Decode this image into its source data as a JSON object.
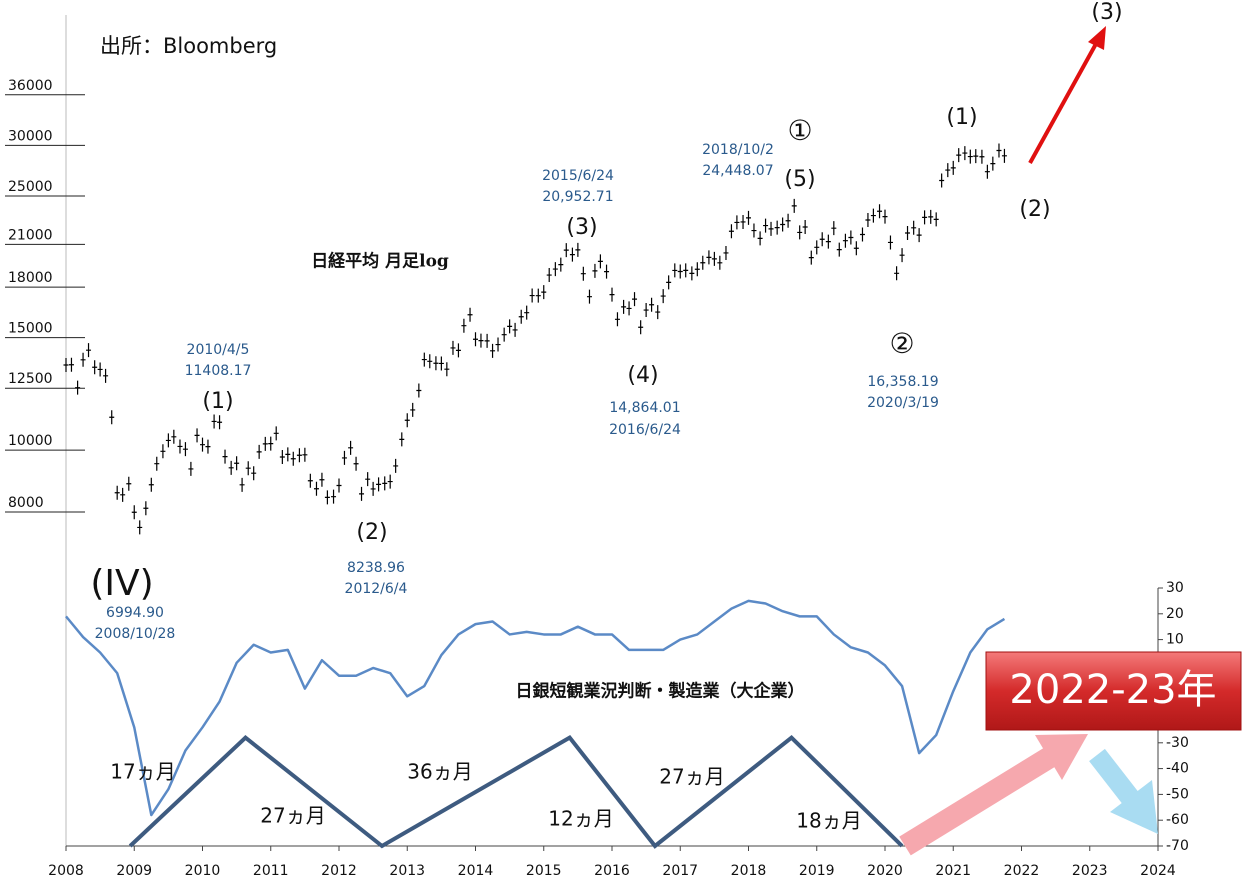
{
  "chart_data": {
    "type": "combo",
    "source": "出所：Bloomberg",
    "xlim": [
      2008,
      2024
    ],
    "xticks": [
      2008,
      2009,
      2010,
      2011,
      2012,
      2013,
      2014,
      2015,
      2016,
      2017,
      2018,
      2019,
      2020,
      2021,
      2022,
      2023,
      2024
    ],
    "ylim": [
      2400,
      48000
    ],
    "log": true,
    "yticks": [
      8000,
      10000,
      12500,
      15000,
      18000,
      21000,
      25000,
      30000,
      36000
    ],
    "y2lim": [
      -70,
      30
    ],
    "y2ticks": [
      30,
      20,
      10,
      -30,
      -40,
      -50,
      -60,
      -70
    ],
    "series": [
      {
        "name": "日経平均 月足log",
        "type": "candle",
        "color": "#000000",
        "x": [
          2008,
          2008.08,
          2008.17,
          2008.25,
          2008.33,
          2008.42,
          2008.5,
          2008.58,
          2008.67,
          2008.75,
          2008.83,
          2008.92,
          2009,
          2009.08,
          2009.17,
          2009.25,
          2009.33,
          2009.42,
          2009.5,
          2009.58,
          2009.67,
          2009.75,
          2009.83,
          2009.92,
          2010,
          2010.08,
          2010.17,
          2010.25,
          2010.33,
          2010.42,
          2010.5,
          2010.58,
          2010.67,
          2010.75,
          2010.83,
          2010.92,
          2011,
          2011.08,
          2011.17,
          2011.25,
          2011.33,
          2011.42,
          2011.5,
          2011.58,
          2011.67,
          2011.75,
          2011.83,
          2011.92,
          2012,
          2012.08,
          2012.17,
          2012.25,
          2012.33,
          2012.42,
          2012.5,
          2012.58,
          2012.67,
          2012.75,
          2012.83,
          2012.92,
          2013,
          2013.08,
          2013.17,
          2013.25,
          2013.33,
          2013.42,
          2013.5,
          2013.58,
          2013.67,
          2013.75,
          2013.83,
          2013.92,
          2014,
          2014.08,
          2014.17,
          2014.25,
          2014.33,
          2014.42,
          2014.5,
          2014.58,
          2014.67,
          2014.75,
          2014.83,
          2014.92,
          2015,
          2015.08,
          2015.17,
          2015.25,
          2015.33,
          2015.42,
          2015.5,
          2015.58,
          2015.67,
          2015.75,
          2015.83,
          2015.92,
          2016,
          2016.08,
          2016.17,
          2016.25,
          2016.33,
          2016.42,
          2016.5,
          2016.58,
          2016.67,
          2016.75,
          2016.83,
          2016.92,
          2017,
          2017.08,
          2017.17,
          2017.25,
          2017.33,
          2017.42,
          2017.5,
          2017.58,
          2017.67,
          2017.75,
          2017.83,
          2017.92,
          2018,
          2018.08,
          2018.17,
          2018.25,
          2018.33,
          2018.42,
          2018.5,
          2018.58,
          2018.67,
          2018.75,
          2018.83,
          2018.92,
          2019,
          2019.08,
          2019.17,
          2019.25,
          2019.33,
          2019.42,
          2019.5,
          2019.58,
          2019.67,
          2019.75,
          2019.83,
          2019.92,
          2020,
          2020.08,
          2020.17,
          2020.25,
          2020.33,
          2020.42,
          2020.5,
          2020.58,
          2020.67,
          2020.75,
          2020.83,
          2020.92,
          2021,
          2021.08,
          2021.17,
          2021.25,
          2021.33,
          2021.42,
          2021.5,
          2021.58,
          2021.67,
          2021.75
        ],
        "values": [
          13592,
          13603,
          12525,
          13849,
          14338,
          13481,
          13376,
          13072,
          11259,
          8576,
          8512,
          8859,
          7994,
          7568,
          8109,
          8827,
          9522,
          9958,
          10356,
          10492,
          10133,
          10034,
          9345,
          10546,
          10198,
          10126,
          11089,
          11057,
          9768,
          9382,
          9537,
          8824,
          9369,
          9202,
          9937,
          10228,
          10237,
          10624,
          9755,
          9849,
          9693,
          9816,
          9833,
          8955,
          8700,
          8988,
          8434,
          8455,
          8802,
          9723,
          10083,
          9520,
          8542,
          9006,
          8695,
          8839,
          8870,
          8928,
          9446,
          10395,
          11138,
          11559,
          12397,
          13860,
          13774,
          13677,
          13668,
          13388,
          14455,
          14327,
          15661,
          16291,
          14914,
          14841,
          14827,
          14304,
          14632,
          15162,
          15621,
          15424,
          16173,
          16413,
          17459,
          17450,
          17674,
          18797,
          19206,
          19520,
          20563,
          20235,
          20585,
          18890,
          17388,
          19083,
          19747,
          19033,
          17518,
          16026,
          16758,
          16666,
          17234,
          15575,
          16569,
          16887,
          16449,
          17425,
          18308,
          19114,
          19041,
          19118,
          18909,
          19196,
          19650,
          20033,
          19925,
          19646,
          20356,
          22011,
          22724,
          22764,
          23098,
          22068,
          21454,
          22467,
          22201,
          22305,
          22553,
          22865,
          24120,
          21920,
          22351,
          20014,
          20773,
          21385,
          21205,
          22258,
          20601,
          21275,
          21521,
          20704,
          21755,
          22927,
          23293,
          23656,
          23205,
          21142,
          18917,
          20193,
          21877,
          22288,
          21710,
          23139,
          23185,
          22977,
          26433,
          27444,
          27663,
          28966,
          29178,
          28813,
          28860,
          28791,
          27283,
          28089,
          29452,
          28892
        ]
      },
      {
        "name": "日銀短観業況判断・製造業（大企業）",
        "type": "line",
        "axis": "y2",
        "color": "#5b8ac6",
        "x": [
          2008,
          2008.25,
          2008.5,
          2008.75,
          2009,
          2009.25,
          2009.5,
          2009.75,
          2010,
          2010.25,
          2010.5,
          2010.75,
          2011,
          2011.25,
          2011.5,
          2011.75,
          2012,
          2012.25,
          2012.5,
          2012.75,
          2013,
          2013.25,
          2013.5,
          2013.75,
          2014,
          2014.25,
          2014.5,
          2014.75,
          2015,
          2015.25,
          2015.5,
          2015.75,
          2016,
          2016.25,
          2016.5,
          2016.75,
          2017,
          2017.25,
          2017.5,
          2017.75,
          2018,
          2018.25,
          2018.5,
          2018.75,
          2019,
          2019.25,
          2019.5,
          2019.75,
          2020,
          2020.25,
          2020.5,
          2020.75,
          2021,
          2021.25,
          2021.5,
          2021.75
        ],
        "values": [
          19,
          11,
          5,
          -3,
          -24,
          -58,
          -48,
          -33,
          -24,
          -14,
          1,
          8,
          5,
          6,
          -9,
          2,
          -4,
          -4,
          -1,
          -3,
          -12,
          -8,
          4,
          12,
          16,
          17,
          12,
          13,
          12,
          12,
          15,
          12,
          12,
          6,
          6,
          6,
          10,
          12,
          17,
          22,
          25,
          24,
          21,
          19,
          19,
          12,
          7,
          5,
          0,
          -8,
          -34,
          -27,
          -10,
          5,
          14,
          18
        ]
      }
    ],
    "cycle": {
      "color": "#3e5b80",
      "x": [
        2008.94,
        2010.63,
        2012.63,
        2015.38,
        2016.63,
        2018.63,
        2020.25
      ],
      "values": [
        -70,
        -28,
        -70,
        -28,
        -70,
        -28,
        -70
      ],
      "labels": [
        "17ヵ月",
        "27ヵ月",
        "36ヵ月",
        "12ヵ月",
        "27ヵ月",
        "18ヵ月"
      ]
    },
    "annotations": [
      "(IV)",
      "6994.90",
      "2008/10/28",
      "2010/4/5",
      "11408.17",
      "(1)",
      "(2)",
      "8238.96",
      "2012/6/4",
      "2015/6/24",
      "20,952.71",
      "(3)",
      "(4)",
      "14,864.01",
      "2016/6/24",
      "2018/10/2",
      "24,448.07",
      "①",
      "(5)",
      "②",
      "16,358.19",
      "2020/3/19",
      "(1)",
      "(2)",
      "(3)"
    ],
    "highlight": "2022-23年"
  }
}
